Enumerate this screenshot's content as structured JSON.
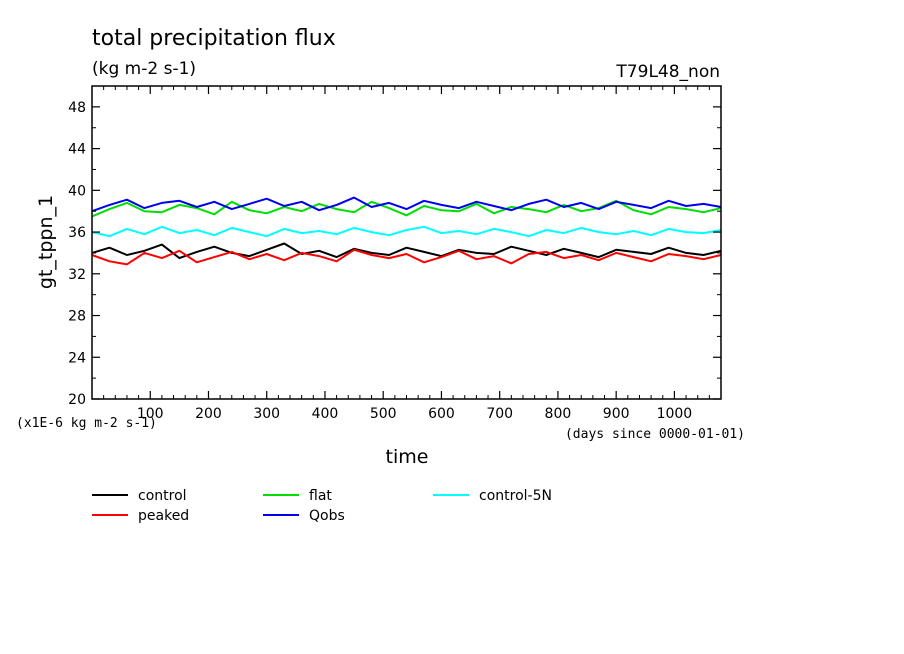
{
  "chart_data": {
    "type": "line",
    "title": "total precipitation flux",
    "units": "(kg m-2 s-1)",
    "run_label": "T79L48_non",
    "xlabel": "time",
    "x_units": "(days since 0000-01-01)",
    "ylabel": "gt_tppn_1",
    "y_scale_note": "(x1E-6 kg m-2 s-1)",
    "xlim": [
      0,
      1080
    ],
    "ylim": [
      20,
      50
    ],
    "x_ticks": [
      100,
      200,
      300,
      400,
      500,
      600,
      700,
      800,
      900,
      1000
    ],
    "y_ticks": [
      20,
      24,
      28,
      32,
      36,
      40,
      44,
      48
    ],
    "grid": false,
    "legend_position": "bottom",
    "x": [
      0,
      30,
      60,
      90,
      120,
      150,
      180,
      210,
      240,
      270,
      300,
      330,
      360,
      390,
      420,
      450,
      480,
      510,
      540,
      570,
      600,
      630,
      660,
      690,
      720,
      750,
      780,
      810,
      840,
      870,
      900,
      930,
      960,
      990,
      1020,
      1050,
      1080
    ],
    "series": [
      {
        "name": "control",
        "color": "#000000",
        "values": [
          34.0,
          34.5,
          33.8,
          34.2,
          34.8,
          33.5,
          34.1,
          34.6,
          34.0,
          33.7,
          34.3,
          34.9,
          33.9,
          34.2,
          33.6,
          34.4,
          34.0,
          33.8,
          34.5,
          34.1,
          33.7,
          34.3,
          34.0,
          33.9,
          34.6,
          34.2,
          33.8,
          34.4,
          34.0,
          33.6,
          34.3,
          34.1,
          33.9,
          34.5,
          34.0,
          33.8,
          34.2
        ]
      },
      {
        "name": "peaked",
        "color": "#ff0000",
        "values": [
          33.8,
          33.2,
          32.9,
          34.0,
          33.5,
          34.2,
          33.1,
          33.6,
          34.1,
          33.4,
          33.9,
          33.3,
          34.0,
          33.7,
          33.2,
          34.3,
          33.8,
          33.5,
          33.9,
          33.1,
          33.6,
          34.2,
          33.4,
          33.7,
          33.0,
          33.9,
          34.1,
          33.5,
          33.8,
          33.3,
          34.0,
          33.6,
          33.2,
          33.9,
          33.7,
          33.4,
          33.8
        ]
      },
      {
        "name": "flat",
        "color": "#00dd00",
        "values": [
          37.5,
          38.2,
          38.8,
          38.0,
          37.9,
          38.6,
          38.3,
          37.7,
          38.9,
          38.1,
          37.8,
          38.4,
          38.0,
          38.7,
          38.2,
          37.9,
          38.9,
          38.3,
          37.6,
          38.5,
          38.1,
          38.0,
          38.7,
          37.8,
          38.4,
          38.2,
          37.9,
          38.6,
          38.0,
          38.3,
          39.0,
          38.1,
          37.7,
          38.4,
          38.2,
          37.9,
          38.3
        ]
      },
      {
        "name": "Qobs",
        "color": "#0000ee",
        "values": [
          38.0,
          38.6,
          39.1,
          38.3,
          38.8,
          39.0,
          38.4,
          38.9,
          38.2,
          38.7,
          39.2,
          38.5,
          38.9,
          38.1,
          38.6,
          39.3,
          38.4,
          38.8,
          38.2,
          39.0,
          38.6,
          38.3,
          38.9,
          38.5,
          38.1,
          38.7,
          39.1,
          38.4,
          38.8,
          38.2,
          38.9,
          38.6,
          38.3,
          39.0,
          38.5,
          38.7,
          38.4
        ]
      },
      {
        "name": "control-5N",
        "color": "#00ffff",
        "values": [
          36.0,
          35.6,
          36.3,
          35.8,
          36.5,
          35.9,
          36.2,
          35.7,
          36.4,
          36.0,
          35.6,
          36.3,
          35.9,
          36.1,
          35.8,
          36.4,
          36.0,
          35.7,
          36.2,
          36.5,
          35.9,
          36.1,
          35.8,
          36.3,
          36.0,
          35.6,
          36.2,
          35.9,
          36.4,
          36.0,
          35.8,
          36.1,
          35.7,
          36.3,
          36.0,
          35.9,
          36.2
        ]
      }
    ]
  }
}
